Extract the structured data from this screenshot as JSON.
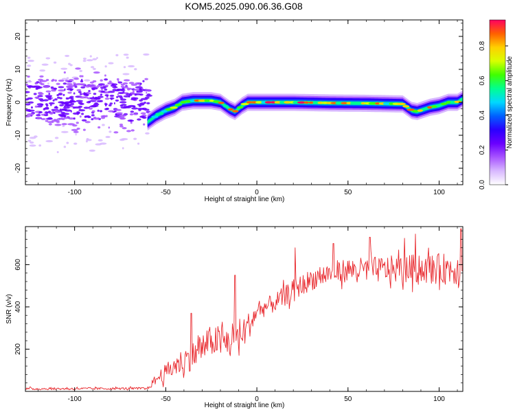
{
  "chart_data": [
    {
      "type": "heatmap",
      "title": "KOM5.2025.090.06.36.G08",
      "xlabel": "Height of straight line (km)",
      "ylabel": "Frequency (Hz)",
      "xlim": [
        -127,
        113
      ],
      "ylim": [
        -25,
        25
      ],
      "xticks": [
        -100,
        -50,
        0,
        50,
        100
      ],
      "yticks": [
        -20,
        -10,
        0,
        10,
        20
      ],
      "colorbar": {
        "label": "Normalized spectral amplitude",
        "range": [
          0.0,
          0.95
        ],
        "ticks": [
          0.0,
          0.2,
          0.4,
          0.6,
          0.8
        ],
        "colors": [
          "#ffffff",
          "#d8b8ff",
          "#a855ff",
          "#6a00ff",
          "#2a00ff",
          "#0060ff",
          "#00d8ff",
          "#00ff90",
          "#40ff00",
          "#d8ff00",
          "#ffd000",
          "#ff6000",
          "#ff0060"
        ]
      },
      "trace": [
        {
          "x": -60,
          "y": -6
        },
        {
          "x": -55,
          "y": -4
        },
        {
          "x": -50,
          "y": -2.5
        },
        {
          "x": -45,
          "y": -1.5
        },
        {
          "x": -41,
          "y": 0
        },
        {
          "x": -35,
          "y": 0.5
        },
        {
          "x": -25,
          "y": 0.5
        },
        {
          "x": -20,
          "y": 0
        },
        {
          "x": -15,
          "y": -2
        },
        {
          "x": -12,
          "y": -2.8
        },
        {
          "x": -8,
          "y": -1
        },
        {
          "x": -5,
          "y": 0
        },
        {
          "x": 0,
          "y": 0
        },
        {
          "x": 20,
          "y": 0
        },
        {
          "x": 40,
          "y": -0.2
        },
        {
          "x": 60,
          "y": -0.3
        },
        {
          "x": 80,
          "y": -0.5
        },
        {
          "x": 85,
          "y": -2.5
        },
        {
          "x": 88,
          "y": -2.8
        },
        {
          "x": 95,
          "y": -1.5
        },
        {
          "x": 100,
          "y": -1
        },
        {
          "x": 105,
          "y": 0
        },
        {
          "x": 110,
          "y": 0
        },
        {
          "x": 113,
          "y": 1
        }
      ]
    },
    {
      "type": "line",
      "title": "",
      "xlabel": "Height of straight line (km)",
      "ylabel": "SNR (v/v)",
      "xlim": [
        -127,
        113
      ],
      "ylim": [
        0,
        780
      ],
      "xticks": [
        -100,
        -50,
        0,
        50,
        100
      ],
      "yticks": [
        200,
        400,
        600
      ],
      "color": "#e8262b",
      "x_step": 0.4,
      "envelope": [
        {
          "x": -127,
          "y": 12
        },
        {
          "x": -60,
          "y": 14
        },
        {
          "x": -55,
          "y": 60
        },
        {
          "x": -45,
          "y": 120
        },
        {
          "x": -35,
          "y": 170
        },
        {
          "x": -25,
          "y": 240
        },
        {
          "x": -15,
          "y": 230
        },
        {
          "x": -8,
          "y": 270
        },
        {
          "x": -3,
          "y": 330
        },
        {
          "x": 0,
          "y": 380
        },
        {
          "x": 10,
          "y": 420
        },
        {
          "x": 20,
          "y": 480
        },
        {
          "x": 30,
          "y": 530
        },
        {
          "x": 40,
          "y": 560
        },
        {
          "x": 50,
          "y": 575
        },
        {
          "x": 60,
          "y": 575
        },
        {
          "x": 80,
          "y": 580
        },
        {
          "x": 100,
          "y": 580
        },
        {
          "x": 113,
          "y": 580
        }
      ],
      "noise_amplitude": [
        {
          "x": -127,
          "y": 8
        },
        {
          "x": -60,
          "y": 8
        },
        {
          "x": -55,
          "y": 40
        },
        {
          "x": -40,
          "y": 90
        },
        {
          "x": -20,
          "y": 110
        },
        {
          "x": -10,
          "y": 130
        },
        {
          "x": 0,
          "y": 60
        },
        {
          "x": 20,
          "y": 70
        },
        {
          "x": 50,
          "y": 80
        },
        {
          "x": 113,
          "y": 110
        }
      ],
      "peaks": [
        {
          "x": -36,
          "y": 370
        },
        {
          "x": -12,
          "y": 550
        },
        {
          "x": 21,
          "y": 680
        },
        {
          "x": 42,
          "y": 700
        },
        {
          "x": 62,
          "y": 730
        },
        {
          "x": 81,
          "y": 725
        },
        {
          "x": 87,
          "y": 745
        },
        {
          "x": 112,
          "y": 770
        }
      ]
    }
  ]
}
